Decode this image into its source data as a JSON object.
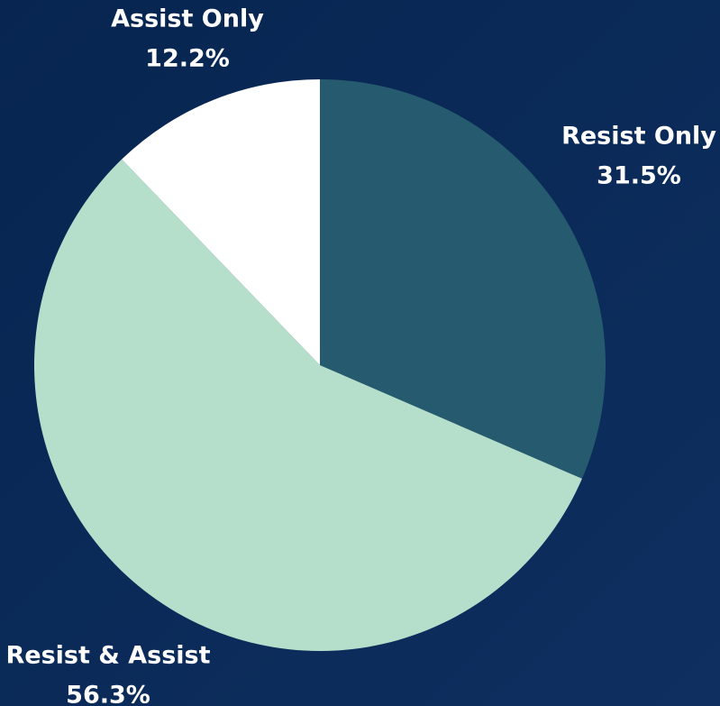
{
  "chart_data": {
    "type": "pie",
    "categories": [
      "Resist Only",
      "Resist & Assist",
      "Assist Only"
    ],
    "values": [
      31.5,
      56.3,
      12.2
    ],
    "value_labels": [
      "31.5%",
      "56.3%",
      "12.2%"
    ],
    "colors": [
      "#265a6e",
      "#b6dfcb",
      "#ffffff"
    ]
  }
}
